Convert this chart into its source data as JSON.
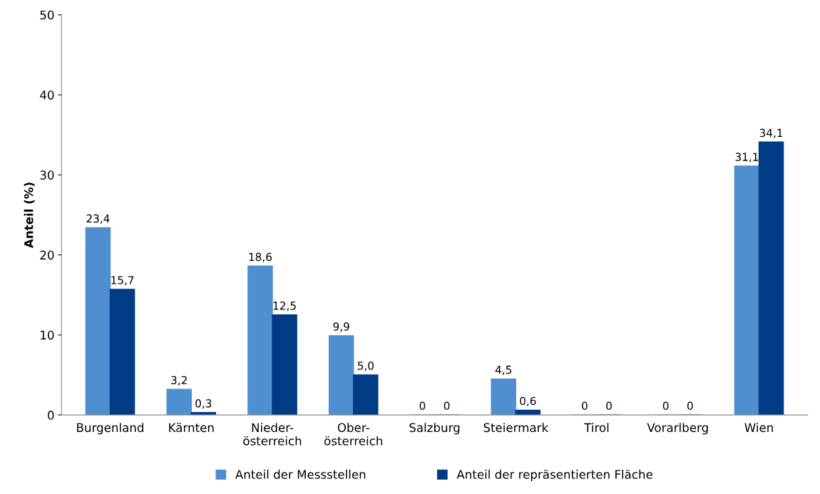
{
  "chart_data": {
    "type": "bar",
    "ylabel": "Anteil (%)",
    "categories": [
      "Burgenland",
      "Kärnten",
      "Nieder-\nösterreich",
      "Ober-\nösterreich",
      "Salzburg",
      "Steiermark",
      "Tirol",
      "Vorarlberg",
      "Wien"
    ],
    "series": [
      {
        "name": "Anteil der Messstellen",
        "color": "#4f8fd0",
        "values": [
          23.4,
          3.2,
          18.6,
          9.9,
          0,
          4.5,
          0,
          0,
          31.1
        ],
        "value_labels": [
          "23,4",
          "3,2",
          "18,6",
          "9,9",
          "0",
          "4,5",
          "0",
          "0",
          "31,1"
        ]
      },
      {
        "name": "Anteil der repräsentierten Fläche",
        "color": "#003b85",
        "values": [
          15.7,
          0.3,
          12.5,
          5.0,
          0,
          0.6,
          0,
          0,
          34.1
        ],
        "value_labels": [
          "15,7",
          "0,3",
          "12,5",
          "5,0",
          "0",
          "0,6",
          "0",
          "0",
          "34,1"
        ]
      }
    ],
    "ylim": [
      0,
      50
    ],
    "yticks": [
      0,
      10,
      20,
      30,
      40,
      50
    ],
    "grid": false,
    "legend": "bottom"
  }
}
